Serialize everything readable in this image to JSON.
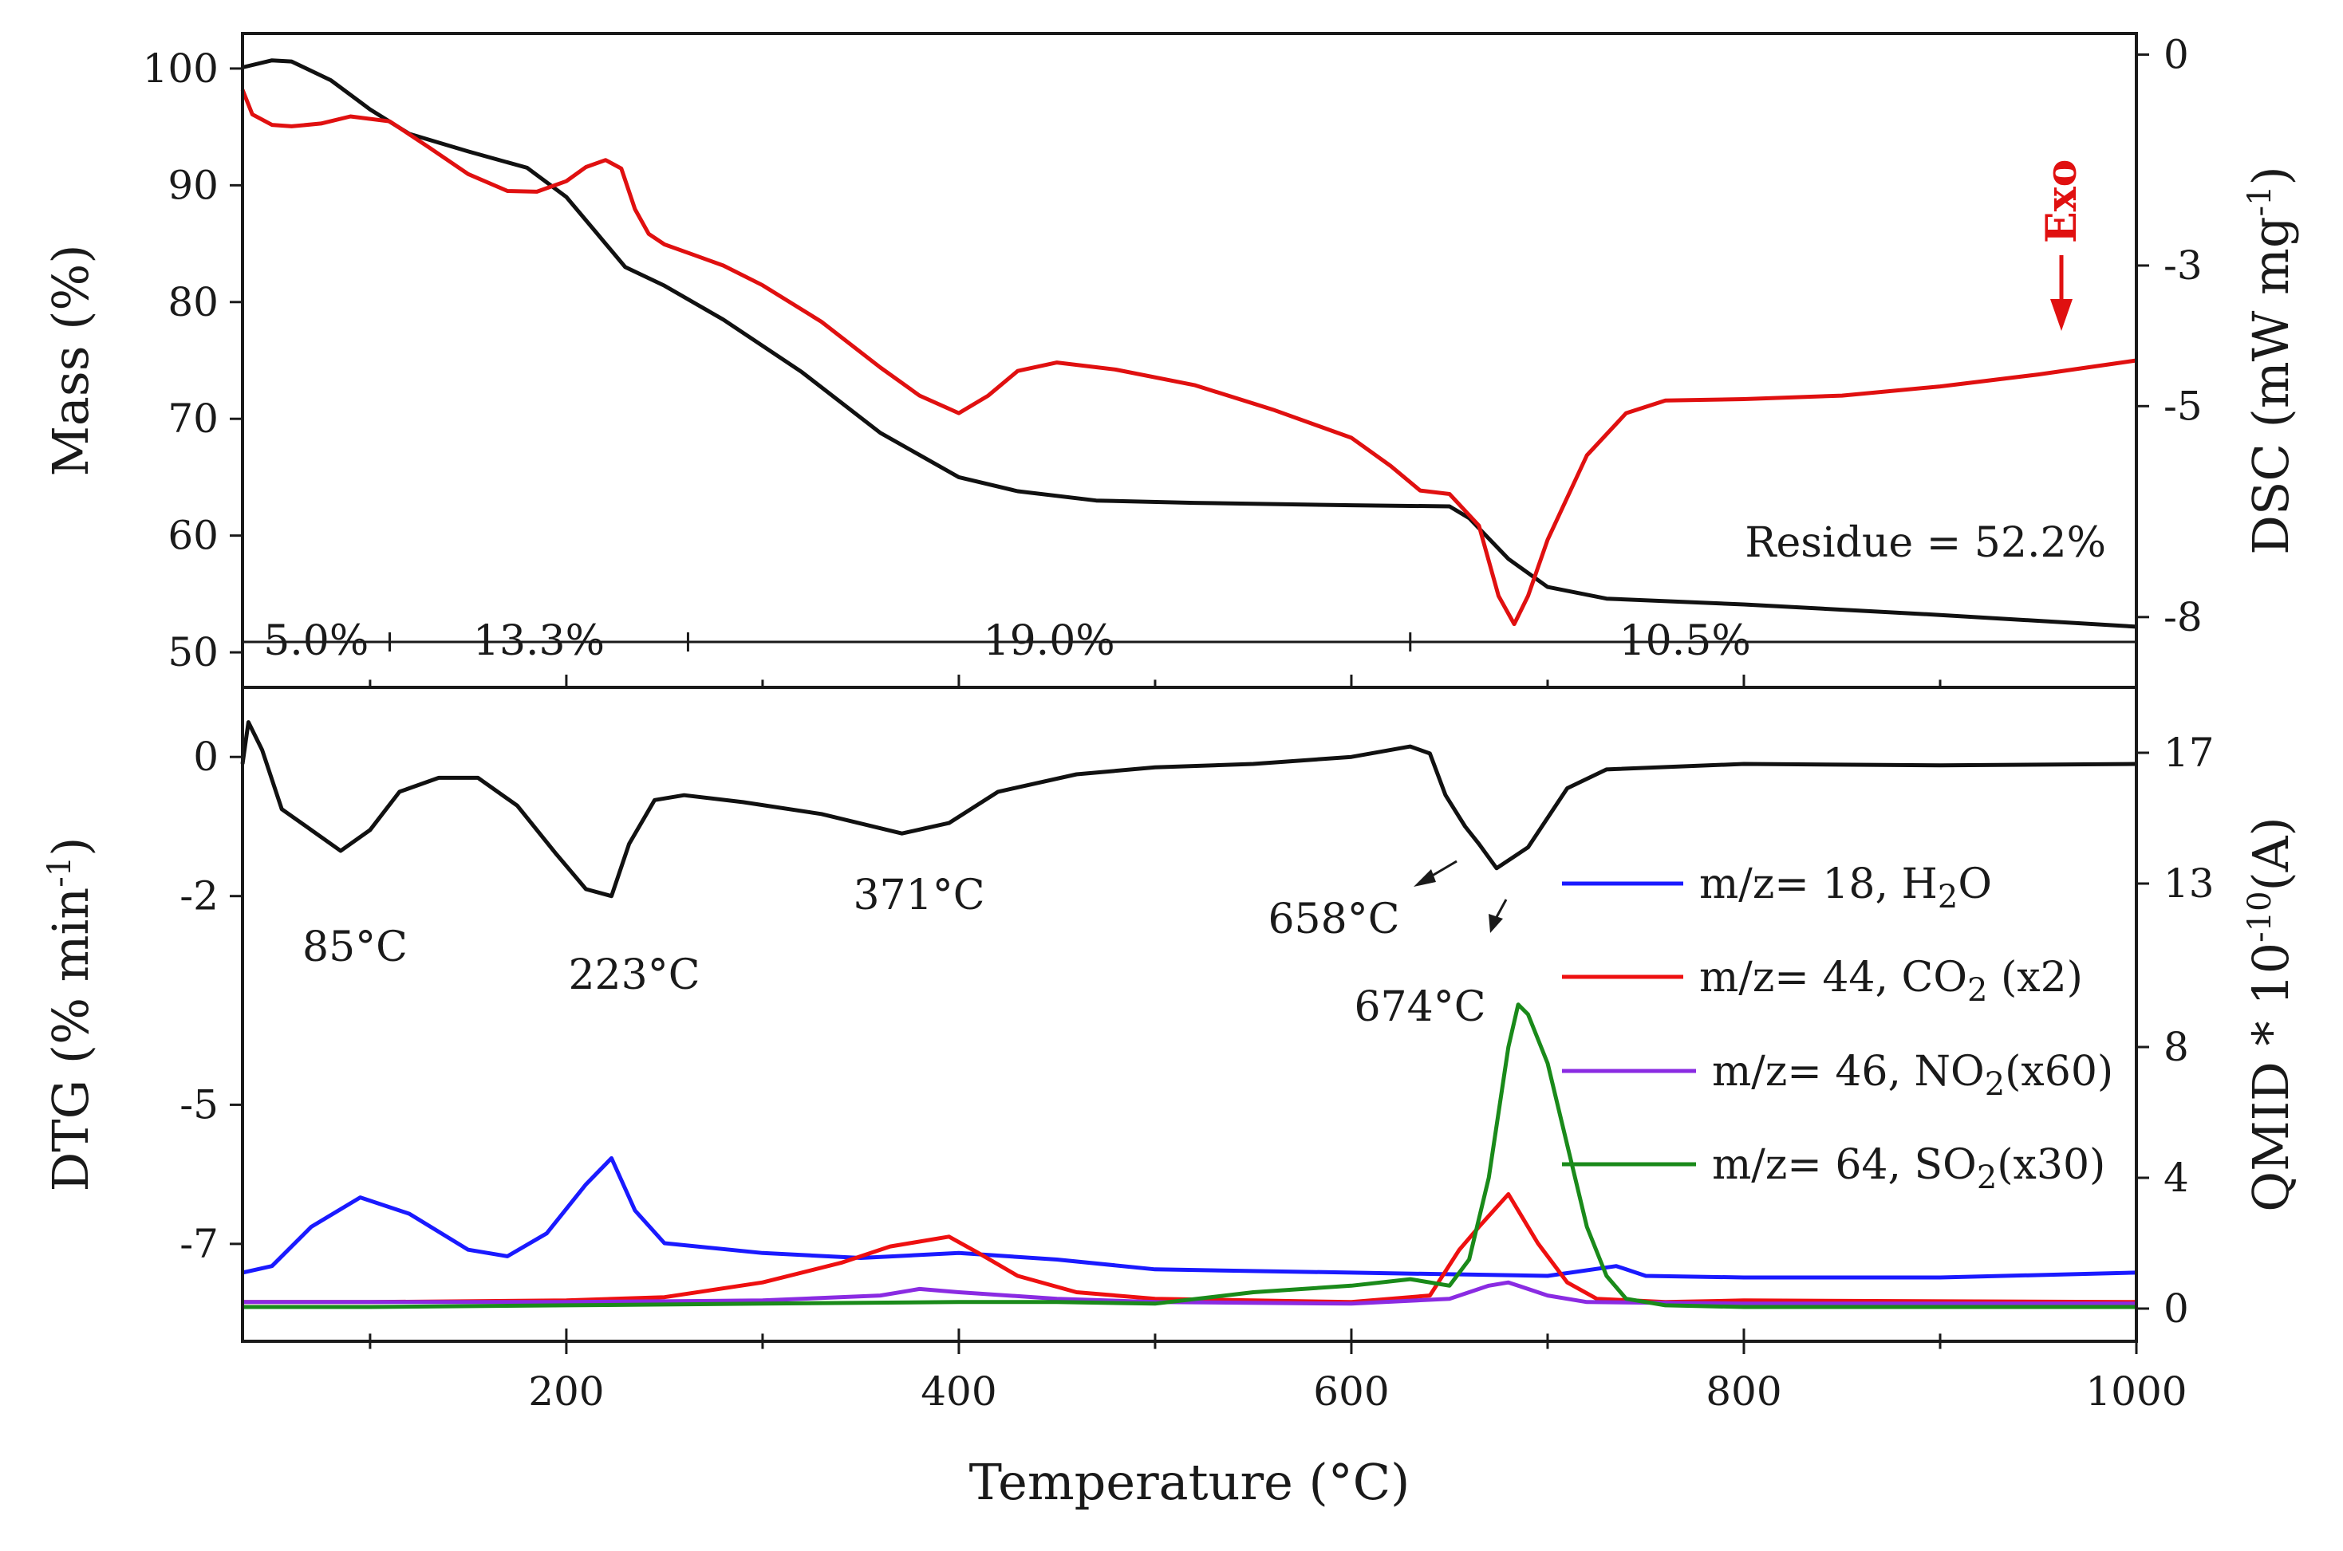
{
  "chart_data": [
    {
      "panel": "top",
      "type": "line",
      "xlabel": "Temperature (°C)",
      "xlim": [
        35,
        1000
      ],
      "x_ticks": [
        200,
        400,
        600,
        800,
        1000
      ],
      "ylabel_left": "Mass (%)",
      "ylim_left": [
        47,
        103
      ],
      "y_ticks_left": [
        50,
        60,
        70,
        80,
        90,
        100
      ],
      "ylabel_right_parts": [
        "DSC (mW mg",
        "-1",
        ")"
      ],
      "ylim_right": [
        -9,
        0.3
      ],
      "y_ticks_right": [
        0,
        -3,
        -5,
        -8
      ],
      "series": [
        {
          "name": "Mass",
          "axis": "left",
          "color": "#111111",
          "x": [
            35,
            50,
            60,
            80,
            100,
            120,
            150,
            180,
            200,
            215,
            230,
            250,
            280,
            320,
            360,
            400,
            430,
            470,
            520,
            600,
            650,
            660,
            680,
            700,
            730,
            800,
            900,
            1000
          ],
          "y": [
            100.1,
            100.7,
            100.6,
            99,
            96.5,
            94.4,
            92.9,
            91.5,
            89,
            86,
            83,
            81.4,
            78.5,
            74,
            68.8,
            65,
            63.8,
            63,
            62.8,
            62.6,
            62.5,
            61.5,
            58,
            55.6,
            54.6,
            54.1,
            53.2,
            52.2
          ]
        },
        {
          "name": "DSC",
          "axis": "right",
          "color": "#e01010",
          "x": [
            35,
            40,
            50,
            60,
            75,
            90,
            110,
            130,
            150,
            170,
            185,
            200,
            210,
            220,
            228,
            235,
            242,
            250,
            265,
            280,
            300,
            330,
            360,
            380,
            400,
            415,
            430,
            450,
            480,
            520,
            560,
            600,
            620,
            635,
            650,
            665,
            675,
            683,
            690,
            700,
            720,
            740,
            760,
            800,
            850,
            900,
            950,
            1000
          ],
          "y": [
            -0.5,
            -0.85,
            -1.0,
            -1.02,
            -0.98,
            -0.88,
            -0.95,
            -1.32,
            -1.7,
            -1.94,
            -1.95,
            -1.8,
            -1.6,
            -1.5,
            -1.62,
            -2.2,
            -2.55,
            -2.7,
            -2.85,
            -3.0,
            -3.28,
            -3.8,
            -4.45,
            -4.85,
            -5.1,
            -4.85,
            -4.5,
            -4.38,
            -4.48,
            -4.7,
            -5.05,
            -5.45,
            -5.85,
            -6.2,
            -6.25,
            -6.7,
            -7.7,
            -8.1,
            -7.7,
            -6.9,
            -5.7,
            -5.1,
            -4.92,
            -4.9,
            -4.85,
            -4.72,
            -4.55,
            -4.35
          ]
        }
      ],
      "annotations": [
        "Residue = 52.2%",
        "Exo"
      ],
      "step_labels": [
        "5.0%",
        "13.3%",
        "19.0%",
        "10.5%"
      ],
      "step_boundaries": [
        35,
        110,
        262,
        630,
        1000
      ]
    },
    {
      "panel": "bottom",
      "type": "line",
      "xlabel": "Temperature (°C)",
      "xlim": [
        35,
        1000
      ],
      "x_ticks": [
        200,
        400,
        600,
        800,
        1000
      ],
      "ylabel_left_parts": [
        "DTG (% min",
        "-1",
        ")"
      ],
      "ylim_left": [
        -8.4,
        1
      ],
      "y_ticks_left": [
        0,
        -2,
        -5,
        -7
      ],
      "ylabel_right_parts": [
        "QMID * 10",
        "-10",
        "(A)"
      ],
      "ylim_right": [
        -1,
        19
      ],
      "y_ticks_right": [
        0,
        4,
        8,
        13,
        17
      ],
      "series": [
        {
          "name": "DTG",
          "axis": "left",
          "color": "#111111",
          "x": [
            35,
            38,
            45,
            55,
            70,
            85,
            100,
            115,
            135,
            155,
            175,
            195,
            210,
            223,
            232,
            245,
            260,
            290,
            330,
            371,
            395,
            420,
            460,
            500,
            550,
            600,
            630,
            640,
            648,
            658,
            665,
            674,
            690,
            710,
            730,
            800,
            900,
            1000
          ],
          "y": [
            -0.1,
            0.5,
            0.1,
            -0.75,
            -1.05,
            -1.35,
            -1.05,
            -0.5,
            -0.3,
            -0.3,
            -0.7,
            -1.4,
            -1.9,
            -2.0,
            -1.25,
            -0.62,
            -0.55,
            -0.65,
            -0.82,
            -1.1,
            -0.95,
            -0.5,
            -0.25,
            -0.15,
            -0.1,
            0.0,
            0.15,
            0.05,
            -0.55,
            -1.0,
            -1.25,
            -1.6,
            -1.3,
            -0.45,
            -0.18,
            -0.1,
            -0.12,
            -0.1
          ]
        },
        {
          "name": "m/z= 18, H2O",
          "axis": "right",
          "color": "#1a1aff",
          "x": [
            35,
            50,
            70,
            95,
            120,
            150,
            170,
            190,
            210,
            223,
            235,
            250,
            300,
            350,
            400,
            450,
            500,
            600,
            700,
            735,
            750,
            800,
            900,
            1000
          ],
          "y": [
            1.1,
            1.3,
            2.5,
            3.4,
            2.9,
            1.8,
            1.6,
            2.3,
            3.8,
            4.6,
            3.0,
            2.0,
            1.7,
            1.55,
            1.7,
            1.5,
            1.2,
            1.1,
            1.0,
            1.3,
            1.0,
            0.95,
            0.95,
            1.1
          ]
        },
        {
          "name": "m/z= 44, CO2 (x2)",
          "axis": "right",
          "color": "#ee1010",
          "x": [
            35,
            100,
            200,
            250,
            300,
            340,
            365,
            375,
            395,
            410,
            430,
            460,
            500,
            550,
            600,
            640,
            655,
            665,
            680,
            695,
            710,
            725,
            760,
            800,
            1000
          ],
          "y": [
            0.2,
            0.2,
            0.25,
            0.35,
            0.8,
            1.4,
            1.9,
            2.0,
            2.2,
            1.7,
            1.0,
            0.5,
            0.3,
            0.25,
            0.2,
            0.4,
            1.8,
            2.5,
            3.5,
            2.0,
            0.8,
            0.3,
            0.2,
            0.25,
            0.2
          ]
        },
        {
          "name": "m/z= 46, NO2(x60)",
          "axis": "right",
          "color": "#8a2be2",
          "x": [
            35,
            100,
            200,
            300,
            360,
            380,
            400,
            450,
            500,
            600,
            650,
            670,
            680,
            690,
            700,
            720,
            800,
            1000
          ],
          "y": [
            0.2,
            0.2,
            0.2,
            0.25,
            0.4,
            0.6,
            0.5,
            0.3,
            0.2,
            0.15,
            0.3,
            0.7,
            0.8,
            0.6,
            0.4,
            0.2,
            0.15,
            0.15
          ]
        },
        {
          "name": "m/z= 64, SO2(x30)",
          "axis": "right",
          "color": "#1a8a1a",
          "x": [
            35,
            100,
            200,
            300,
            400,
            450,
            500,
            550,
            600,
            630,
            650,
            660,
            670,
            680,
            685,
            690,
            700,
            710,
            720,
            730,
            740,
            760,
            800,
            1000
          ],
          "y": [
            0.05,
            0.05,
            0.1,
            0.15,
            0.2,
            0.2,
            0.15,
            0.5,
            0.7,
            0.9,
            0.7,
            1.5,
            4.0,
            8.0,
            9.3,
            9.0,
            7.5,
            5.0,
            2.5,
            1.0,
            0.3,
            0.1,
            0.05,
            0.05
          ]
        }
      ],
      "peak_labels": [
        "85°C",
        "223°C",
        "371°C",
        "658°C",
        "674°C"
      ],
      "legend": [
        {
          "pre": "m/z= 18, H",
          "sub": "2",
          "post": "O",
          "color": "#1a1aff"
        },
        {
          "pre": "m/z= 44, CO",
          "sub": "2",
          "post": " (x2)",
          "color": "#ee1010"
        },
        {
          "pre": "m/z= 46, NO",
          "sub": "2",
          "post": "(x60)",
          "color": "#8a2be2"
        },
        {
          "pre": "m/z= 64, SO",
          "sub": "2",
          "post": "(x30)",
          "color": "#1a8a1a"
        }
      ]
    }
  ]
}
